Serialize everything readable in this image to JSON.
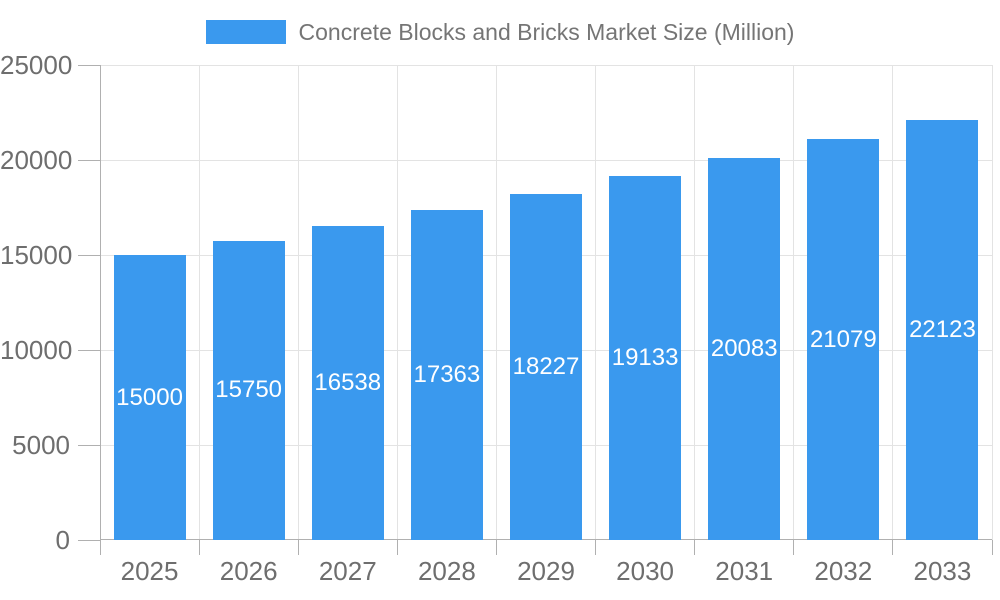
{
  "legend": {
    "label": "Concrete Blocks and Bricks Market Size (Million)"
  },
  "colors": {
    "bar": "#3A99EE",
    "bar_label": "#ffffff",
    "grid": "#e3e3e3",
    "axis": "#b0b0b0",
    "axis_label": "#6e6e6e",
    "legend_text": "#757575",
    "background": "#ffffff"
  },
  "chart_data": {
    "type": "bar",
    "title": "Concrete Blocks and Bricks Market Size (Million)",
    "categories": [
      "2025",
      "2026",
      "2027",
      "2028",
      "2029",
      "2030",
      "2031",
      "2032",
      "2033"
    ],
    "values": [
      15000,
      15750,
      16538,
      17363,
      18227,
      19133,
      20083,
      21079,
      22123
    ],
    "bar_value_labels": [
      "15000",
      "15750",
      "16538",
      "17363",
      "18227",
      "19133",
      "20083",
      "21079",
      "22123"
    ],
    "xlabel": "",
    "ylabel": "",
    "ylim": [
      0,
      25000
    ],
    "yticks": [
      0,
      5000,
      10000,
      15000,
      20000,
      25000
    ],
    "grid": true,
    "legend_position": "top",
    "bar_labels_position": "inside-center"
  }
}
